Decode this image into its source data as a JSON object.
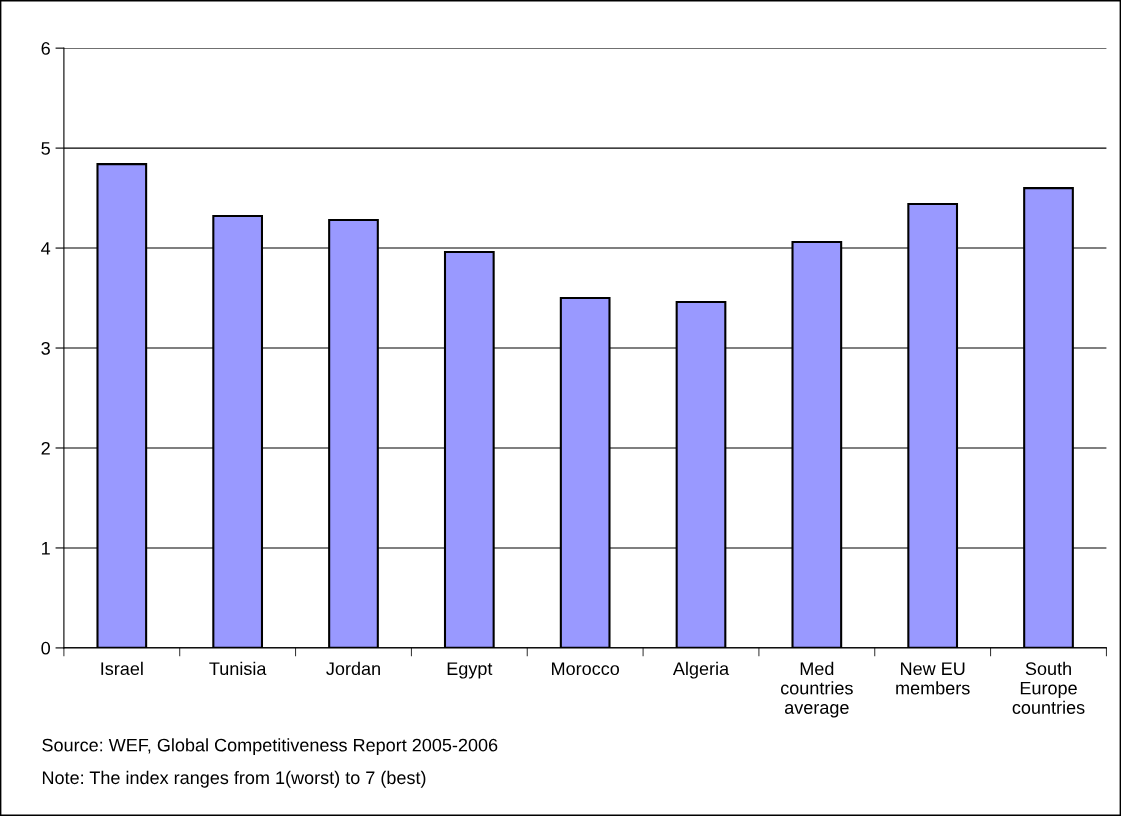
{
  "chart_data": {
    "type": "bar",
    "categories": [
      "Israel",
      "Tunisia",
      "Jordan",
      "Egypt",
      "Morocco",
      "Algeria",
      "Med\ncountries\naverage",
      "New EU\nmembers",
      "South\nEurope\ncountries"
    ],
    "values": [
      4.84,
      4.32,
      4.28,
      3.96,
      3.5,
      3.46,
      4.06,
      4.44,
      4.6
    ],
    "color": "#9999ff",
    "ylim": [
      0,
      6
    ],
    "yticks": [
      0,
      1,
      2,
      3,
      4,
      5,
      6
    ],
    "grid": "y",
    "legend": false,
    "annotations": [
      "Source: WEF, Global Competitiveness Report 2005-2006",
      "Note: The index ranges from 1(worst) to 7 (best)"
    ]
  }
}
